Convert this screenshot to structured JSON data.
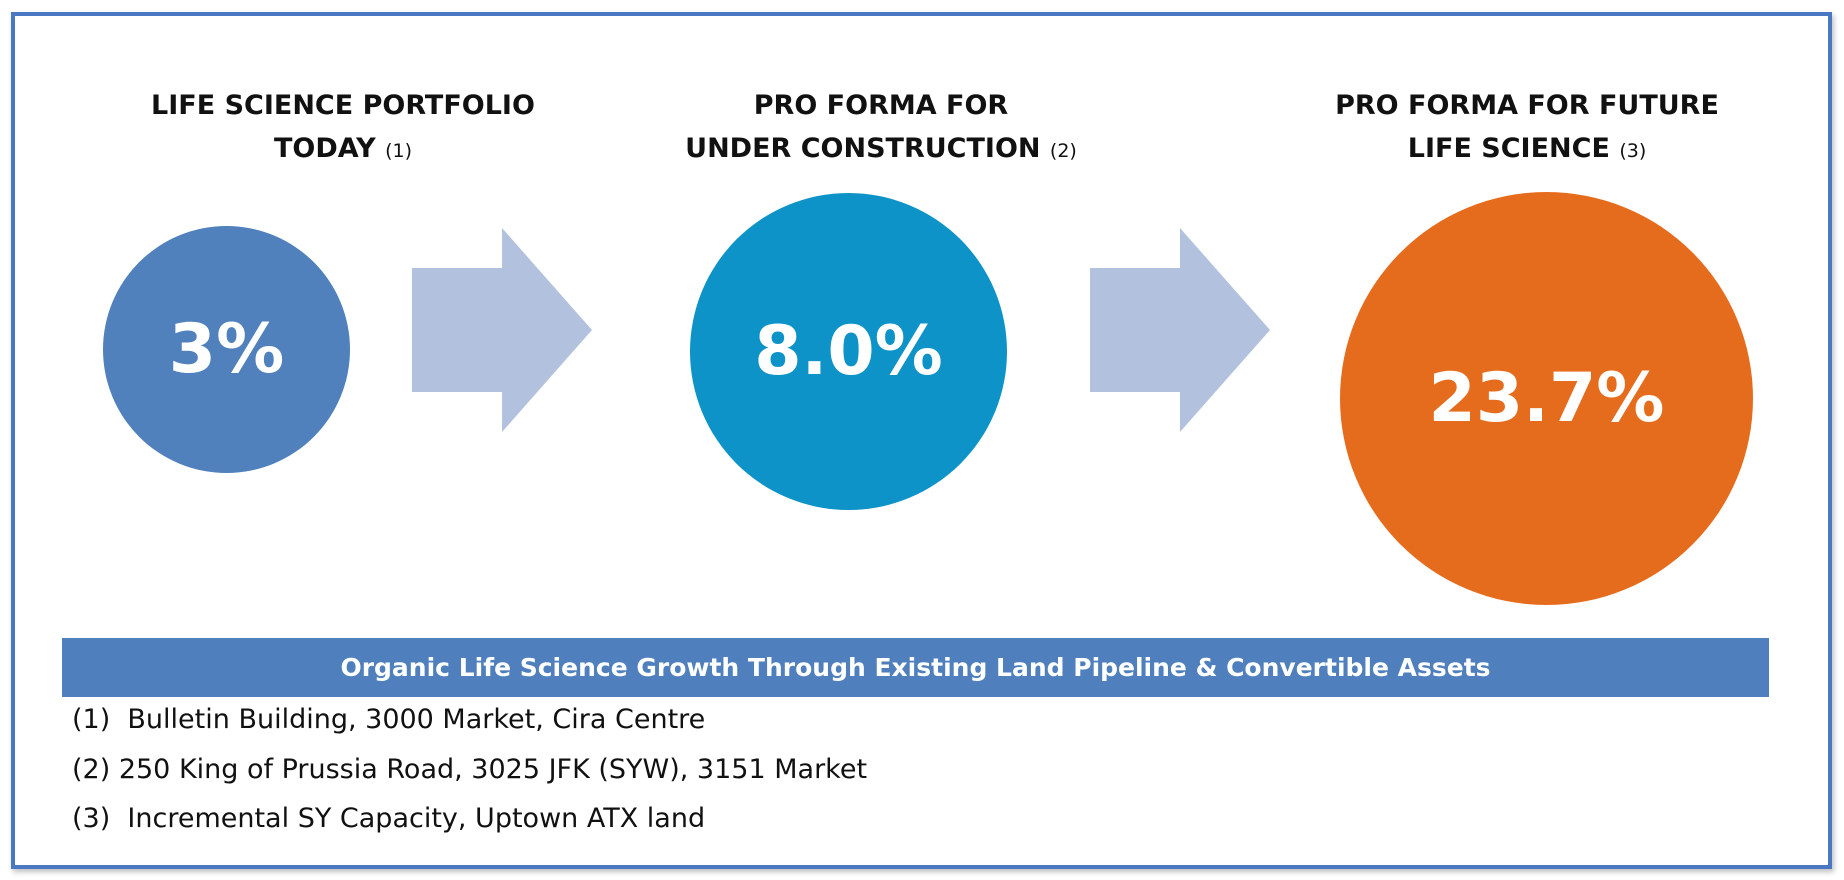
{
  "stages": [
    {
      "heading_line1": "LIFE SCIENCE PORTFOLIO",
      "heading_line2": "TODAY",
      "note": "(1)",
      "value": "3%",
      "color": "#5081bd"
    },
    {
      "heading_line1": "PRO FORMA FOR",
      "heading_line2": "UNDER CONSTRUCTION",
      "note": "(2)",
      "value": "8.0%",
      "color": "#0d93c8"
    },
    {
      "heading_line1": "PRO FORMA FOR FUTURE",
      "heading_line2": "LIFE SCIENCE",
      "note": "(3)",
      "value": "23.7%",
      "color": "#e66c1d"
    }
  ],
  "arrow_color": "#b2c2de",
  "banner": {
    "text": "Organic Life Science Growth Through Existing Land Pipeline & Convertible Assets",
    "color": "#4f80bd"
  },
  "footnotes": [
    "(1)  Bulletin Building, 3000 Market, Cira Centre",
    "(2) 250 King of Prussia Road, 3025 JFK (SYW), 3151 Market",
    "(3)  Incremental SY Capacity, Uptown ATX land"
  ]
}
